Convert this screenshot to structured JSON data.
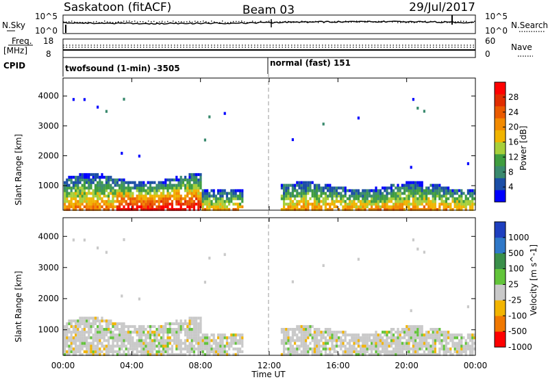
{
  "header": {
    "station": "Saskatoon (fitACF)",
    "beam": "Beam 03",
    "date": "29/Jul/2017"
  },
  "noise_panel": {
    "left_label": "N.Sky",
    "left_ticks": [
      "10^5",
      "10^0"
    ],
    "right_ticks": [
      "10^5",
      "10^0"
    ],
    "right_label": "N.Search"
  },
  "freq_panel": {
    "left_label_top": "Freq.",
    "left_label_bottom": "[MHz]",
    "left_ticks": [
      "18",
      "8"
    ],
    "right_ticks": [
      "60",
      "0"
    ],
    "right_label": "Nave"
  },
  "cpid_panel": {
    "label": "CPID",
    "entries": [
      {
        "text": "twofsound (1-min) -3505",
        "start_hour": 0
      },
      {
        "text": "normal (fast) 151",
        "start_hour": 12
      }
    ]
  },
  "time_axis": {
    "ticks": [
      "00:00",
      "04:00",
      "08:00",
      "12:00",
      "16:00",
      "20:00",
      "00:00"
    ],
    "label": "Time UT",
    "range_hours": [
      0,
      24
    ]
  },
  "chart_data": [
    {
      "type": "heatmap",
      "ylabel": "Slant Range [km]",
      "xlim_hours": [
        0,
        24
      ],
      "ylim_km": [
        180,
        4600
      ],
      "yticks": [
        "4000",
        "3000",
        "2000",
        "1000"
      ],
      "ytick_values": [
        4000,
        3000,
        2000,
        1000
      ],
      "colorbar": {
        "label": "Power [dB]",
        "ticks": [
          "28",
          "24",
          "20",
          "16",
          "12",
          "8",
          "4"
        ],
        "tick_values": [
          28,
          24,
          20,
          16,
          12,
          8,
          4
        ],
        "range": [
          0,
          32
        ],
        "colors": [
          "#0000ff",
          "#1b4ea6",
          "#3a8a6e",
          "#3f9d3f",
          "#a7cf3a",
          "#f0b400",
          "#f28a00",
          "#ea5a00",
          "#e12d00",
          "#ff0000"
        ]
      }
    },
    {
      "type": "heatmap",
      "ylabel": "Slant Range [km]",
      "xlim_hours": [
        0,
        24
      ],
      "ylim_km": [
        180,
        4600
      ],
      "yticks": [
        "4000",
        "3000",
        "2000",
        "1000"
      ],
      "ytick_values": [
        4000,
        3000,
        2000,
        1000
      ],
      "colorbar": {
        "label": "Velocity [m s^-1]",
        "ticks": [
          "1000",
          "500",
          "100",
          "25",
          "-25",
          "-100",
          "-500",
          "-1000"
        ],
        "tick_values": [
          1000,
          500,
          100,
          25,
          -25,
          -100,
          -500,
          -1000
        ],
        "colors": [
          "#1e3fbf",
          "#2f78c8",
          "#3a8f4a",
          "#62c43a",
          "#c9c9c9",
          "#f2b400",
          "#f07800",
          "#ff0000"
        ]
      }
    }
  ]
}
